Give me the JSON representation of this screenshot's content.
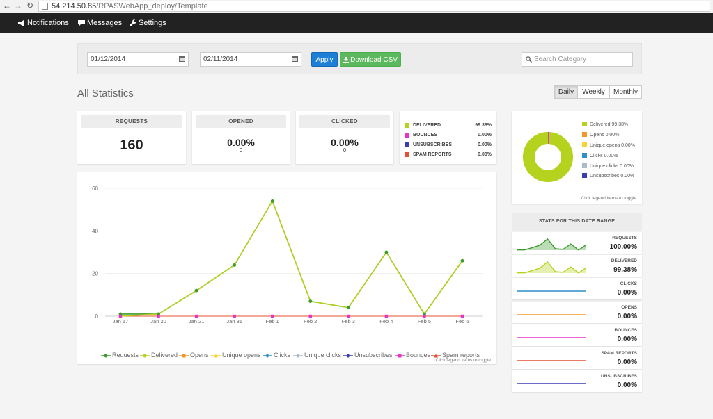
{
  "browser": {
    "url_host": "54.214.50.85",
    "url_path": "/RPASWebApp_deploy/Template"
  },
  "nav": {
    "notifications": "Notifications",
    "messages": "Messages",
    "settings": "Settings"
  },
  "filters": {
    "start_date": "01/12/2014",
    "end_date": "02/11/2014",
    "apply_label": "Apply",
    "download_label": "Download CSV",
    "search_placeholder": "Search Category"
  },
  "page": {
    "title": "All Statistics",
    "period_options": [
      "Daily",
      "Weekly",
      "Monthly"
    ],
    "period_selected": "Daily"
  },
  "stats": {
    "requests": {
      "label": "REQUESTS",
      "value": "160"
    },
    "opened": {
      "label": "OPENED",
      "pct": "0.00%",
      "count": "0"
    },
    "clicked": {
      "label": "CLICKED",
      "pct": "0.00%",
      "count": "0"
    }
  },
  "rates": [
    {
      "label": "DELIVERED",
      "value": "99.38%",
      "color": "#b5d21e"
    },
    {
      "label": "BOUNCES",
      "value": "0.00%",
      "color": "#e633c8"
    },
    {
      "label": "UNSUBSCRIBES",
      "value": "0.00%",
      "color": "#3a3fb0"
    },
    {
      "label": "SPAM REPORTS",
      "value": "0.00%",
      "color": "#e35032"
    }
  ],
  "donut": {
    "legend": [
      {
        "label": "Delivered 99.38%",
        "color": "#b5d21e"
      },
      {
        "label": "Opens 0.00%",
        "color": "#f2982a"
      },
      {
        "label": "Unique opens 0.00%",
        "color": "#f5d43a"
      },
      {
        "label": "Clicks 0.00%",
        "color": "#2d8fc9"
      },
      {
        "label": "Unique clicks 0.00%",
        "color": "#a8bccb"
      },
      {
        "label": "Unsubscribes 0.00%",
        "color": "#3a3fb0"
      }
    ],
    "note": "Click legend items to toggle",
    "delivered_fraction": 0.9938
  },
  "chart_data": {
    "type": "line",
    "categories": [
      "Jan 17",
      "Jan 20",
      "Jan 21",
      "Jan 31",
      "Feb 1",
      "Feb 2",
      "Feb 3",
      "Feb 4",
      "Feb 5",
      "Feb 6"
    ],
    "yticks": [
      "0",
      "20",
      "40",
      "60"
    ],
    "ylim": [
      0,
      60
    ],
    "series": [
      {
        "name": "Requests",
        "color": "#3d9a2d",
        "values": [
          1,
          1,
          12,
          24,
          54,
          7,
          4,
          30,
          1,
          26
        ]
      },
      {
        "name": "Delivered",
        "color": "#b5d21e",
        "values": [
          0,
          1,
          12,
          24,
          54,
          7,
          4,
          30,
          1,
          26
        ]
      },
      {
        "name": "Opens",
        "color": "#f2982a",
        "values": [
          0,
          0,
          0,
          0,
          0,
          0,
          0,
          0,
          0,
          0
        ]
      },
      {
        "name": "Unique opens",
        "color": "#f5d43a",
        "values": [
          0,
          0,
          0,
          0,
          0,
          0,
          0,
          0,
          0,
          0
        ]
      },
      {
        "name": "Clicks",
        "color": "#2d8fc9",
        "values": [
          0,
          0,
          0,
          0,
          0,
          0,
          0,
          0,
          0,
          0
        ]
      },
      {
        "name": "Unique clicks",
        "color": "#a8bccb",
        "values": [
          0,
          0,
          0,
          0,
          0,
          0,
          0,
          0,
          0,
          0
        ]
      },
      {
        "name": "Unsubscribes",
        "color": "#3a3fb0",
        "values": [
          0,
          0,
          0,
          0,
          0,
          0,
          0,
          0,
          0,
          0
        ]
      },
      {
        "name": "Bounces",
        "color": "#e633c8",
        "values": [
          0,
          0,
          0,
          0,
          0,
          0,
          0,
          0,
          0,
          0
        ]
      },
      {
        "name": "Spam reports",
        "color": "#e35032",
        "values": [
          0,
          0,
          0,
          0,
          0,
          0,
          0,
          0,
          0,
          0
        ]
      }
    ],
    "legend_position": "bottom",
    "note": "Click legend items to toggle"
  },
  "range": {
    "title": "STATS FOR THIS DATE RANGE",
    "items": [
      {
        "label": "REQUESTS",
        "value": "100.00%",
        "color": "#3d9a2d",
        "kind": "area"
      },
      {
        "label": "DELIVERED",
        "value": "99.38%",
        "color": "#b5d21e",
        "kind": "area"
      },
      {
        "label": "CLICKS",
        "value": "0.00%",
        "color": "#2d8fc9",
        "kind": "flat"
      },
      {
        "label": "OPENS",
        "value": "0.00%",
        "color": "#f2982a",
        "kind": "flat"
      },
      {
        "label": "BOUNCES",
        "value": "0.00%",
        "color": "#e633c8",
        "kind": "flat"
      },
      {
        "label": "SPAM REPORTS",
        "value": "0.00%",
        "color": "#e35032",
        "kind": "flat"
      },
      {
        "label": "UNSUBSCRIBES",
        "value": "0.00%",
        "color": "#3a3fb0",
        "kind": "flat"
      }
    ]
  }
}
